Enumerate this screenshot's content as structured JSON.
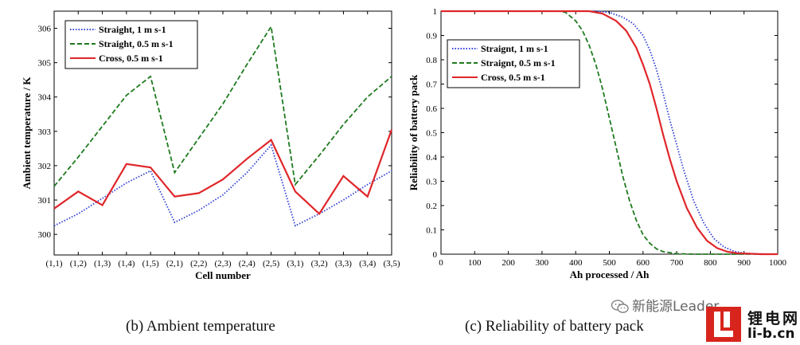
{
  "captions": {
    "left": "(b) Ambient temperature",
    "right": "(c) Reliability of battery pack"
  },
  "watermark": {
    "text": "新能源Leader",
    "icon": "wechat-icon"
  },
  "logo": {
    "cn": "锂电网",
    "en": "li-b.cn",
    "brand_color": "#d7251d"
  },
  "chart_data": [
    {
      "type": "line",
      "xlabel": "Cell number",
      "ylabel": "Ambient temperature / K",
      "categories": [
        "(1,1)",
        "(1,2)",
        "(1,3)",
        "(1,4)",
        "(1,5)",
        "(2,1)",
        "(2,2)",
        "(2,3)",
        "(2,4)",
        "(2,5)",
        "(3,1)",
        "(3,2)",
        "(3,3)",
        "(3,4)",
        "(3,5)"
      ],
      "ylim": [
        299.4,
        306.5
      ],
      "yticks": [
        300,
        301,
        302,
        303,
        304,
        305,
        306
      ],
      "legend_position": "top-left",
      "series": [
        {
          "name": "Straight, 1 m s-1",
          "color": "#2f3fd6",
          "dash": "dotted",
          "values": [
            300.25,
            300.6,
            301.05,
            301.5,
            301.85,
            300.35,
            300.7,
            301.15,
            301.8,
            302.6,
            300.25,
            300.6,
            301.0,
            301.45,
            301.85
          ]
        },
        {
          "name": "Straight, 0.5 m s-1",
          "color": "#1f7a1f",
          "dash": "dashed",
          "values": [
            301.4,
            302.25,
            303.15,
            304.05,
            304.6,
            301.8,
            302.8,
            303.8,
            304.95,
            306.05,
            301.45,
            302.3,
            303.2,
            304.0,
            304.6
          ]
        },
        {
          "name": "Cross, 0.5 m s-1",
          "color": "#e0262a",
          "dash": "solid",
          "values": [
            300.75,
            301.25,
            300.85,
            302.05,
            301.95,
            301.1,
            301.2,
            301.6,
            302.2,
            302.75,
            301.25,
            300.6,
            301.7,
            301.1,
            303.05
          ]
        }
      ]
    },
    {
      "type": "line",
      "xlabel": "Ah processed / Ah",
      "ylabel": "Reliability of battery pack",
      "xlim": [
        0,
        1000
      ],
      "ylim": [
        0,
        1
      ],
      "xticks": [
        0,
        100,
        200,
        300,
        400,
        500,
        600,
        700,
        800,
        900,
        1000
      ],
      "yticks": [
        0,
        0.1,
        0.2,
        0.3,
        0.4,
        0.5,
        0.6,
        0.7,
        0.8,
        0.9,
        1
      ],
      "ytick_labels": [
        "0",
        "0.1",
        "0.2",
        "0.3",
        "0.4",
        "0.5",
        "0.6",
        "0.7",
        "0.8",
        "0.9",
        "1"
      ],
      "legend_position": "upper-left",
      "series": [
        {
          "name": "Straignt, 1 m s-1",
          "color": "#2f3fd6",
          "dash": "dotted",
          "x": [
            0,
            400,
            460,
            500,
            540,
            570,
            600,
            620,
            640,
            660,
            680,
            700,
            720,
            750,
            780,
            810,
            840,
            870,
            900,
            950,
            1000
          ],
          "values": [
            1,
            1,
            1,
            0.995,
            0.975,
            0.95,
            0.9,
            0.84,
            0.76,
            0.66,
            0.55,
            0.45,
            0.35,
            0.22,
            0.13,
            0.065,
            0.03,
            0.012,
            0.004,
            0.001,
            0
          ]
        },
        {
          "name": "Straignt, 0.5 m s-1",
          "color": "#1f7a1f",
          "dash": "dashed",
          "x": [
            0,
            350,
            370,
            400,
            420,
            440,
            460,
            480,
            500,
            520,
            540,
            560,
            580,
            600,
            620,
            640,
            660,
            700,
            750,
            800,
            1000
          ],
          "values": [
            1,
            1,
            0.995,
            0.96,
            0.92,
            0.86,
            0.78,
            0.68,
            0.56,
            0.44,
            0.32,
            0.22,
            0.14,
            0.08,
            0.045,
            0.022,
            0.01,
            0.002,
            0,
            0,
            0
          ]
        },
        {
          "name": "Cross, 0.5 m s-1",
          "color": "#e0262a",
          "dash": "solid",
          "x": [
            0,
            440,
            480,
            520,
            550,
            580,
            600,
            620,
            640,
            660,
            680,
            700,
            730,
            760,
            790,
            820,
            850,
            880,
            950,
            1000
          ],
          "values": [
            1,
            1,
            0.99,
            0.96,
            0.92,
            0.85,
            0.78,
            0.7,
            0.6,
            0.49,
            0.39,
            0.3,
            0.19,
            0.11,
            0.055,
            0.025,
            0.01,
            0.004,
            0,
            0
          ]
        }
      ]
    }
  ]
}
